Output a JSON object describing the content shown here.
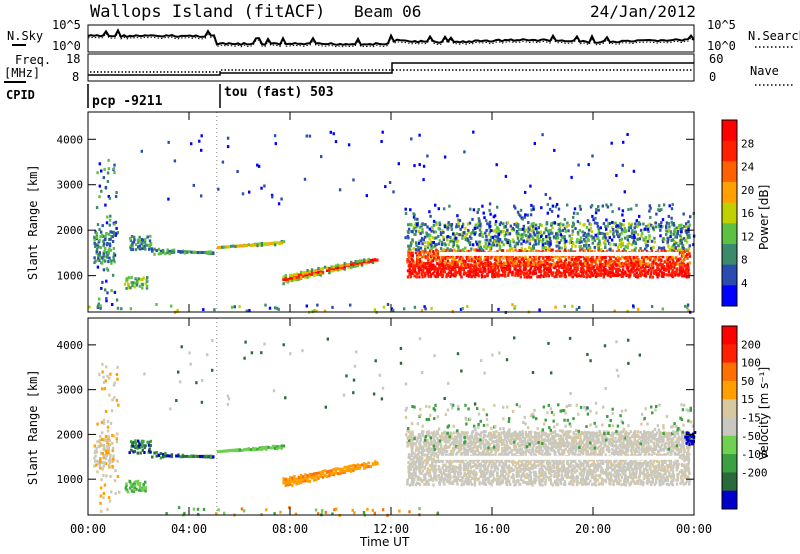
{
  "header": {
    "station": "Wallops Island (fitACF)",
    "beam": "Beam 06",
    "date": "24/Jan/2012"
  },
  "status": {
    "nsky_label": "N.Sky",
    "nsearch_label": "N.Search",
    "freq_label": "Freq.",
    "freq_unit": "[MHz]",
    "nave_label": "Nave",
    "cpid_label": "CPID",
    "log_top": "10^5",
    "log_bottom": "10^0",
    "freq_ticks": [
      "18",
      "8"
    ],
    "nave_ticks": [
      "60",
      "0"
    ],
    "cpid_segments": [
      {
        "label": "pcp -9211",
        "start": 0.0,
        "end": 5.1
      },
      {
        "label": "tou (fast) 503",
        "start": 5.1,
        "end": 24.0
      }
    ]
  },
  "colors": {
    "power_scale": [
      "#0000ff",
      "#2a4bb0",
      "#3a8a6b",
      "#5cc040",
      "#c0d000",
      "#ffa000",
      "#ff6000",
      "#ff2000",
      "#ff0000"
    ],
    "velocity_scale": [
      "#0000cc",
      "#2a6a3a",
      "#3aa040",
      "#70d050",
      "#c8c8c0",
      "#d8c8a0",
      "#ffa000",
      "#ff7000",
      "#ff2000",
      "#ff0000"
    ],
    "ground": "#c8c8c0"
  },
  "chart_data": [
    {
      "type": "heatmap",
      "name": "Power",
      "ylabel": "Slant Range [km]",
      "ylim": [
        200,
        4600
      ],
      "yticks": [
        "1000",
        "2000",
        "3000",
        "4000"
      ],
      "colorbar": {
        "label": "Power [dB]",
        "range": [
          0,
          32
        ],
        "ticks": [
          "4",
          "8",
          "12",
          "16",
          "20",
          "24",
          "28"
        ]
      }
    },
    {
      "type": "heatmap",
      "name": "Velocity",
      "xlabel": "Time UT",
      "ylabel": "Slant Range [km]",
      "ylim": [
        200,
        4600
      ],
      "xlim": [
        0,
        24
      ],
      "xticks": [
        "00:00",
        "04:00",
        "08:00",
        "12:00",
        "16:00",
        "20:00",
        "00:00"
      ],
      "yticks": [
        "1000",
        "2000",
        "3000",
        "4000"
      ],
      "colorbar": {
        "label": "Velocity [m s⁻¹]",
        "ticks": [
          "200",
          "100",
          "50",
          "15",
          "-15",
          "-50",
          "-100",
          "-200"
        ]
      }
    }
  ]
}
